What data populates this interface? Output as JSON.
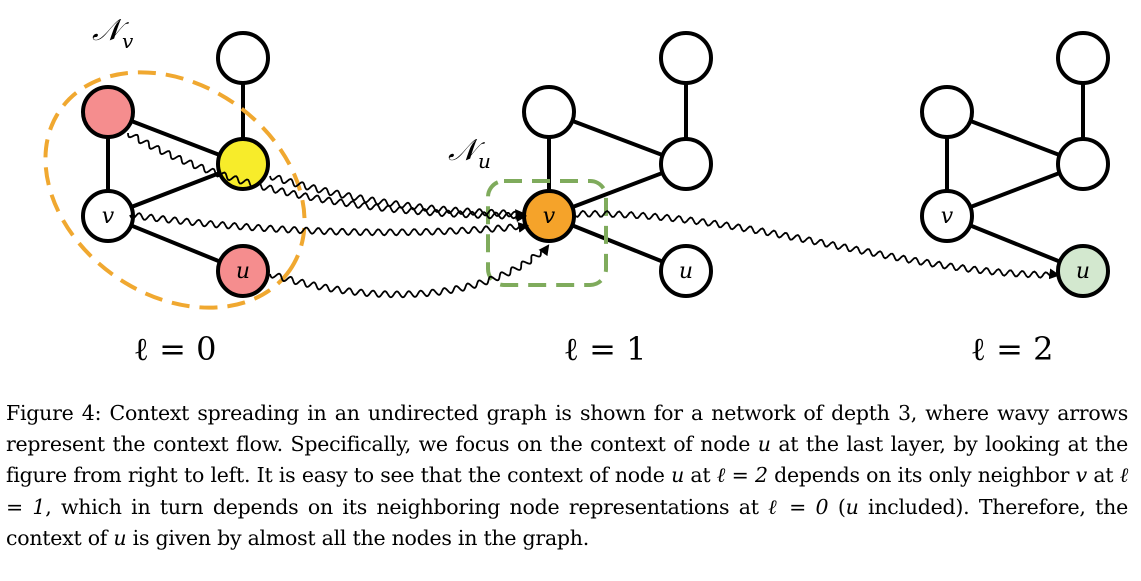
{
  "figure": {
    "neighborhood_v_label": "𝒩",
    "neighborhood_v_sub": "v",
    "neighborhood_u_label": "𝒩",
    "neighborhood_u_sub": "u",
    "node_v": "v",
    "node_u": "u",
    "layers": [
      "ℓ = 0",
      "ℓ = 1",
      "ℓ = 2"
    ],
    "colors": {
      "neighborhood_v": "#f0a830",
      "neighborhood_u": "#7fab5c",
      "pink": "#f58d8e",
      "yellow": "#f7ec2a",
      "orange": "#f5a32a",
      "light_green": "#d3e8cf"
    }
  },
  "caption": {
    "label": "Figure 4:",
    "text_1": " Context spreading in an undirected graph is shown for a network of depth 3, where wavy arrows represent the context flow. Specifically, we focus on the context of node ",
    "u1": "u",
    "text_2": " at the last layer, by looking at the figure from right to left. It is easy to see that the context of node ",
    "u2": "u",
    "text_3": " at ",
    "ell_2": "ℓ = 2",
    "text_4": " depends on its only neighbor ",
    "v1": "v",
    "text_5": " at ",
    "ell_1": "ℓ = 1",
    "text_6": ", which in turn depends on its neighboring node representations at ",
    "ell_0": "ℓ = 0",
    "text_7": " (",
    "u3": "u",
    "text_8": " included). Therefore, the context of ",
    "u4": "u",
    "text_9": " is given by almost all the nodes in the graph."
  }
}
